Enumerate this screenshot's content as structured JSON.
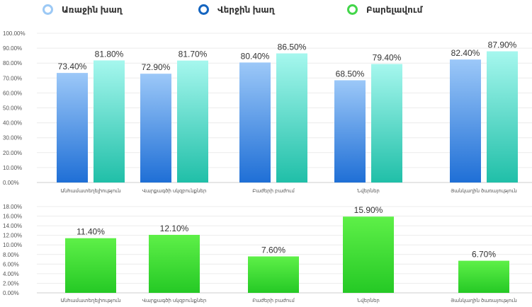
{
  "legend": [
    {
      "label": "Առաջին խաղ",
      "color": "#9cc9f5"
    },
    {
      "label": "Վերջին խաղ",
      "color": "#1565c0"
    },
    {
      "label": "Բարելավում",
      "color": "#43d64a"
    }
  ],
  "chart_data": [
    {
      "type": "bar",
      "categories": [
        "Անհամատեղելիություն",
        "Վարքագծի սկզբունքներ",
        "Բաժերի բաժում",
        "Նվերներ",
        "Յանկաղին ծառայություն"
      ],
      "series": [
        {
          "name": "Առաջին խաղ",
          "values": [
            73.4,
            72.9,
            80.4,
            68.5,
            82.4
          ],
          "color": "#2f7fe0"
        },
        {
          "name": "Վերջին խաղ",
          "values": [
            81.8,
            81.7,
            86.5,
            79.4,
            87.9
          ],
          "color": "#2ec4b0"
        }
      ],
      "data_labels": [
        [
          "73.40%",
          "72.90%",
          "80.40%",
          "68.50%",
          "82.40%"
        ],
        [
          "81.80%",
          "81.70%",
          "86.50%",
          "79.40%",
          "87.90%"
        ]
      ],
      "yticks": [
        "0.00%",
        "10.00%",
        "20.00%",
        "30.00%",
        "40.00%",
        "50.00%",
        "60.00%",
        "70.00%",
        "80.00%",
        "90.00%",
        "100.00%"
      ],
      "ylim": [
        0,
        100
      ],
      "grid": true
    },
    {
      "type": "bar",
      "categories": [
        "Անհամատեղելիություն",
        "Վարքագծի սկզբունքներ",
        "Բաժերի բաժում",
        "Նվերներ",
        "Յանկաղին ծառայություն"
      ],
      "series": [
        {
          "name": "Բարելավում",
          "values": [
            11.4,
            12.1,
            7.6,
            15.9,
            6.7
          ],
          "color": "#3ed63a"
        }
      ],
      "data_labels": [
        [
          "11.40%",
          "12.10%",
          "7.60%",
          "15.90%",
          "6.70%"
        ]
      ],
      "yticks": [
        "0.00%",
        "2.00%",
        "4.00%",
        "6.00%",
        "8.00%",
        "10.00%",
        "12.00%",
        "14.00%",
        "16.00%",
        "18.00%"
      ],
      "ylim": [
        0,
        18
      ],
      "grid": true
    }
  ]
}
